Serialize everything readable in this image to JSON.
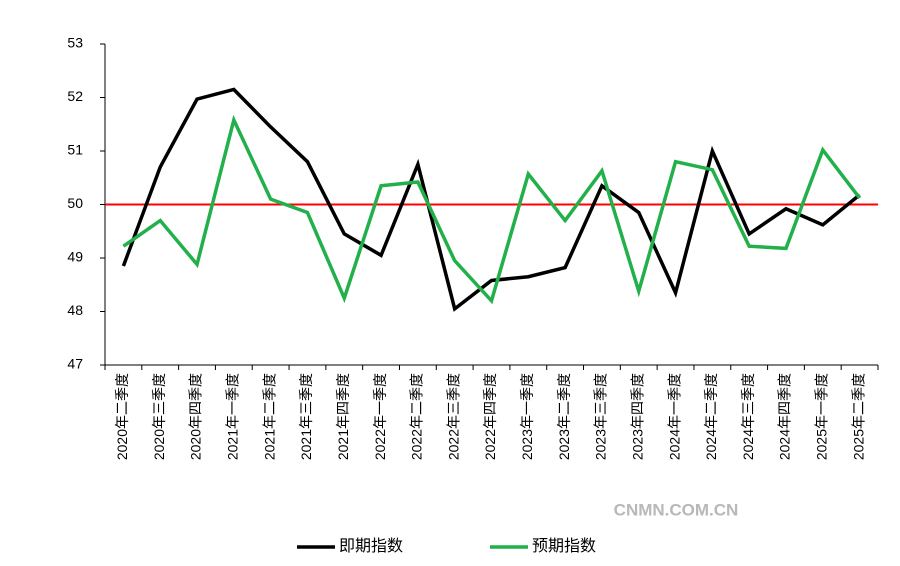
{
  "chart_data": {
    "type": "line",
    "categories": [
      "2020年二季度",
      "2020年三季度",
      "2020年四季度",
      "2021年一季度",
      "2021年二季度",
      "2021年三季度",
      "2021年四季度",
      "2022年一季度",
      "2022年二季度",
      "2022年三季度",
      "2022年四季度",
      "2023年一季度",
      "2023年二季度",
      "2023年三季度",
      "2023年四季度",
      "2024年一季度",
      "2024年二季度",
      "2024年三季度",
      "2024年四季度",
      "2025年一季度",
      "2025年二季度"
    ],
    "series": [
      {
        "name": "即期指数",
        "color": "#000000",
        "values": [
          48.85,
          50.7,
          51.97,
          52.15,
          51.45,
          50.8,
          49.45,
          49.05,
          50.75,
          48.05,
          48.58,
          48.65,
          48.82,
          50.35,
          49.85,
          48.35,
          51.0,
          49.45,
          49.92,
          49.62,
          50.18
        ]
      },
      {
        "name": "预期指数",
        "color": "#22b04b",
        "values": [
          49.22,
          49.7,
          48.88,
          51.58,
          50.1,
          49.85,
          48.25,
          50.35,
          50.42,
          48.95,
          48.2,
          50.57,
          49.7,
          50.63,
          48.38,
          50.8,
          50.65,
          49.22,
          49.18,
          51.02,
          50.12
        ]
      }
    ],
    "reference_line": {
      "value": 50,
      "color": "#ff0000"
    },
    "ylim": [
      47,
      53
    ],
    "yticks": [
      47,
      48,
      49,
      50,
      51,
      52,
      53
    ],
    "legend": "bottom",
    "watermark": "CNMN.COM.CN"
  }
}
